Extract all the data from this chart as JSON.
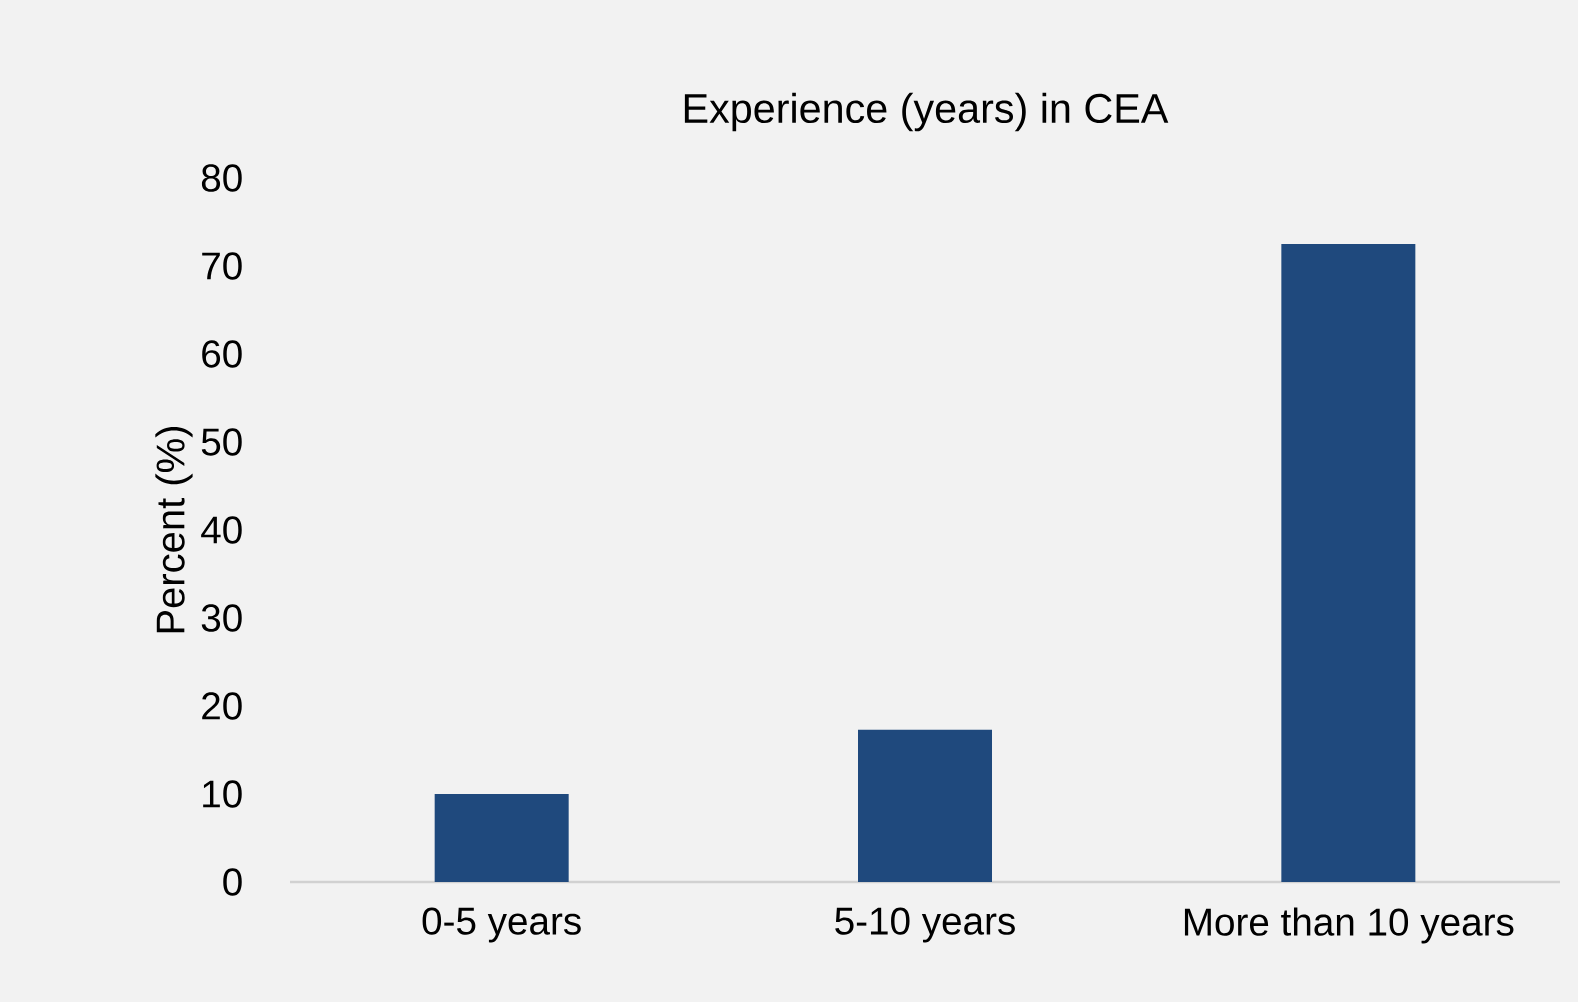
{
  "chart_data": {
    "type": "bar",
    "title": "Experience (years) in CEA",
    "ylabel": "Percent (%)",
    "categories": [
      "0-5 years",
      "5-10 years",
      "More than 10 years"
    ],
    "values": [
      10,
      17.3,
      72.5
    ],
    "color": "#1f497d",
    "ylim": [
      0,
      80
    ],
    "yticks": [
      0,
      10,
      20,
      30,
      40,
      50,
      60,
      70,
      80
    ]
  }
}
